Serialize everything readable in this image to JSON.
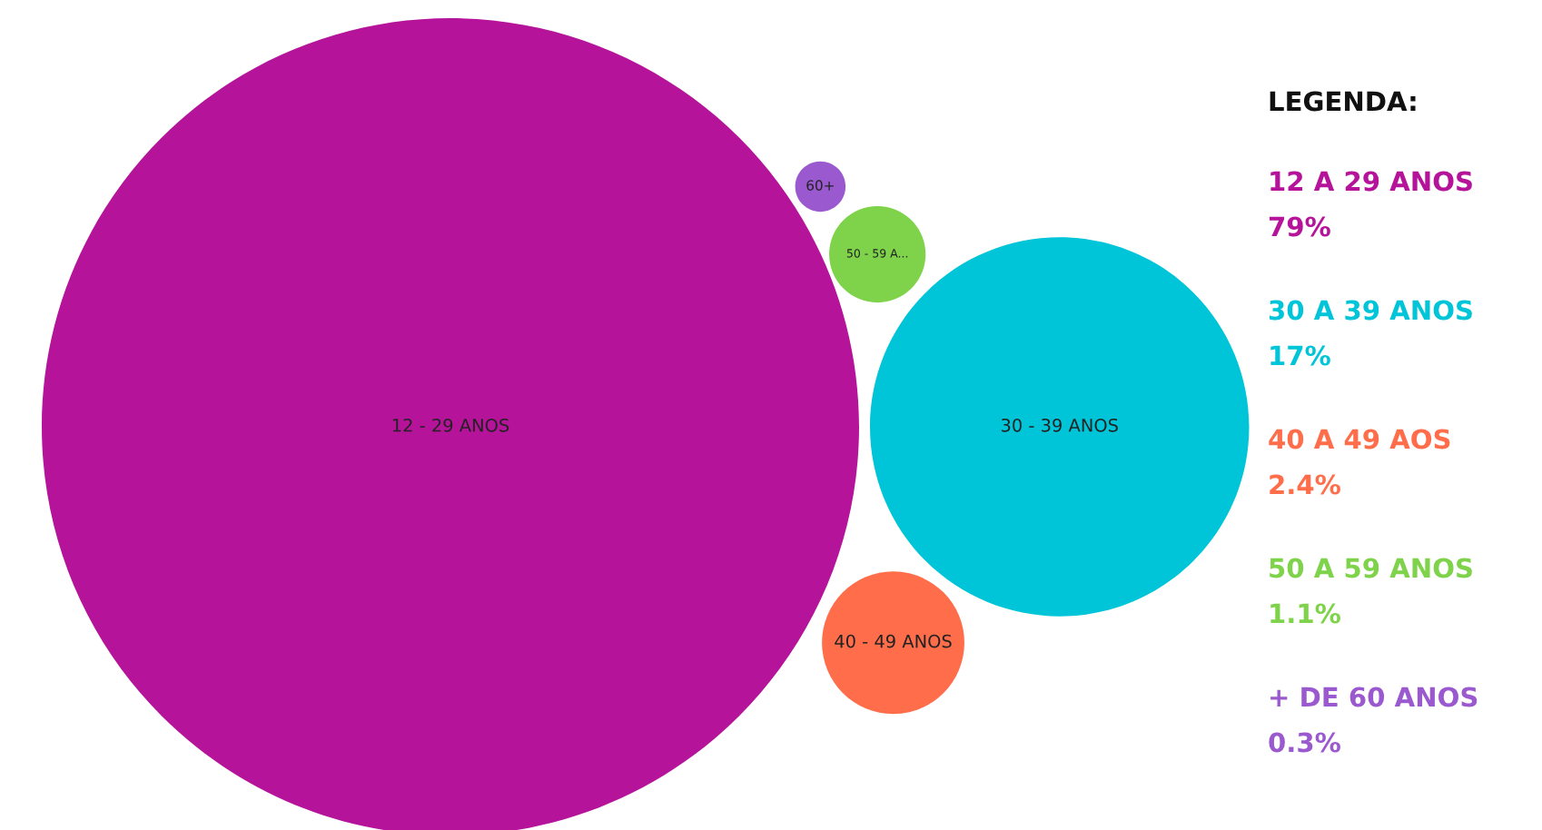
{
  "chart_data": {
    "type": "other",
    "legend_title": "LEGENDA:",
    "categories": [
      "12 A 29 ANOS",
      "30 A 39 ANOS",
      "40 A 49 AOS",
      "50 A 59 ANOS",
      "+ DE 60 ANOS"
    ],
    "values": [
      79,
      17,
      2.4,
      1.1,
      0.3
    ],
    "value_labels": [
      "79%",
      "17%",
      "2.4%",
      "1.1%",
      "0.3%"
    ],
    "colors": [
      "#b5139a",
      "#00c5d8",
      "#ff6d4a",
      "#7ed34a",
      "#9b59d0"
    ],
    "annotations": [
      "12 - 29 ANOS",
      "30 - 39 ANOS",
      "40 - 49 ANOS",
      "50 - 59 A...",
      "60+"
    ]
  }
}
